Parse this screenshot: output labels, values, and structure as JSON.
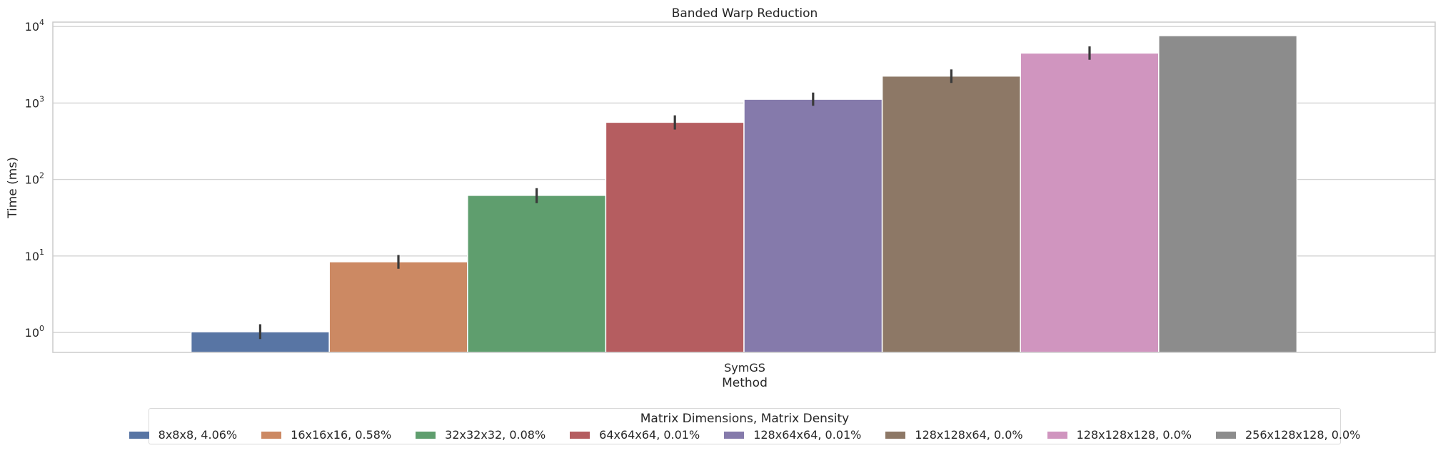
{
  "chart_data": {
    "type": "bar",
    "title": "Banded Warp Reduction",
    "xlabel": "Method",
    "ylabel": "Time (ms)",
    "yscale": "log",
    "ylim": [
      0.55,
      13000
    ],
    "yticks": [
      {
        "value": 1,
        "base": "10",
        "exp": "0"
      },
      {
        "value": 10,
        "base": "10",
        "exp": "1"
      },
      {
        "value": 100,
        "base": "10",
        "exp": "2"
      },
      {
        "value": 1000,
        "base": "10",
        "exp": "3"
      },
      {
        "value": 10000,
        "base": "10",
        "exp": "4"
      }
    ],
    "categories": [
      "SymGS"
    ],
    "grid": true,
    "legend": {
      "title": "Matrix Dimensions, Matrix Density",
      "placement": "bottom"
    },
    "series": [
      {
        "name": "8x8x8, 4.06%",
        "color": "#5875a4",
        "values": [
          1.02
        ],
        "err_low": [
          0.82
        ],
        "err_high": [
          1.28
        ]
      },
      {
        "name": "16x16x16, 0.58%",
        "color": "#cc8963",
        "values": [
          8.4
        ],
        "err_low": [
          6.8
        ],
        "err_high": [
          10.3
        ]
      },
      {
        "name": "32x32x32, 0.08%",
        "color": "#5f9e6e",
        "values": [
          62
        ],
        "err_low": [
          49
        ],
        "err_high": [
          77
        ]
      },
      {
        "name": "64x64x64, 0.01%",
        "color": "#b55d60",
        "values": [
          560
        ],
        "err_low": [
          450
        ],
        "err_high": [
          690
        ]
      },
      {
        "name": "128x64x64, 0.01%",
        "color": "#857aab",
        "values": [
          1120
        ],
        "err_low": [
          920
        ],
        "err_high": [
          1370
        ]
      },
      {
        "name": "128x128x64, 0.0%",
        "color": "#8d7866",
        "values": [
          2250
        ],
        "err_low": [
          1830
        ],
        "err_high": [
          2750
        ]
      },
      {
        "name": "128x128x128, 0.0%",
        "color": "#d095bf",
        "values": [
          4500
        ],
        "err_low": [
          3680
        ],
        "err_high": [
          5500
        ]
      },
      {
        "name": "256x128x128, 0.0%",
        "color": "#8c8c8c",
        "values": [
          7600
        ],
        "err_low": [
          7600
        ],
        "err_high": [
          7600
        ]
      }
    ]
  }
}
